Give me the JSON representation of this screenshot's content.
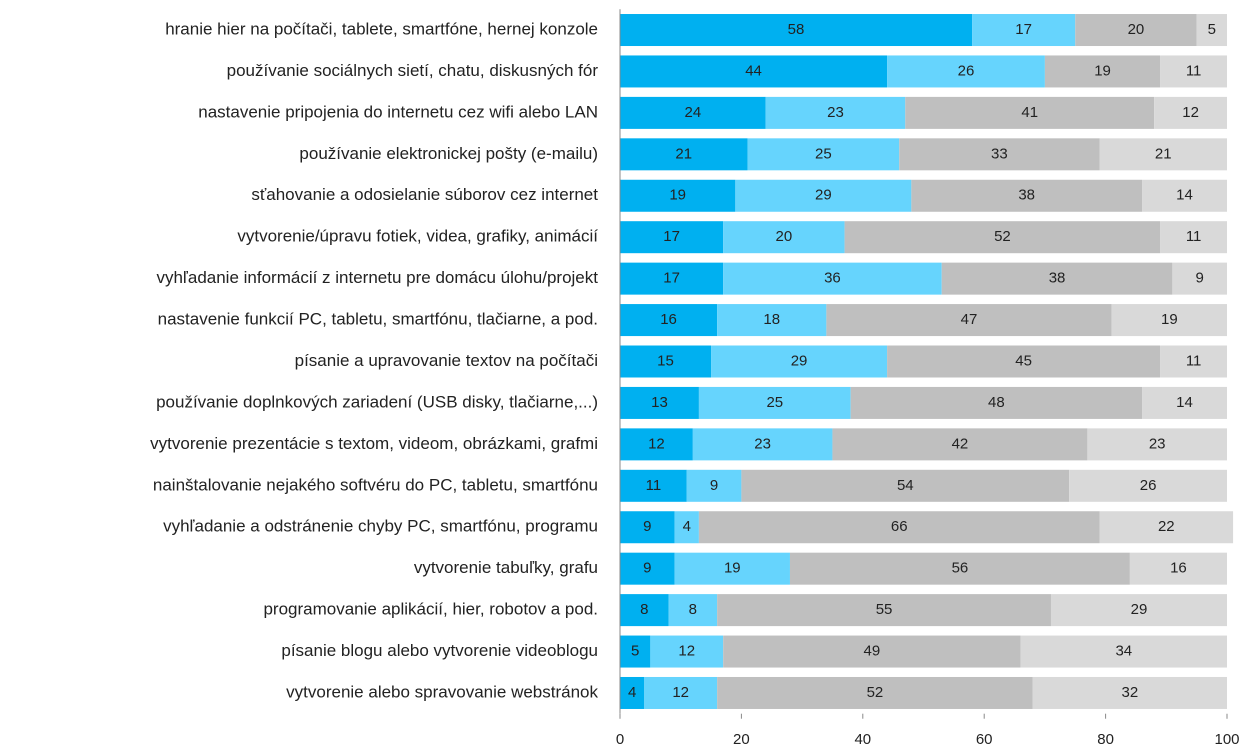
{
  "chart_data": {
    "type": "stacked_barh",
    "categories": [
      "hranie hier na počítači, tablete, smartfóne, hernej konzole",
      "používanie sociálnych sietí, chatu, diskusných fór",
      "nastavenie pripojenia do internetu cez wifi alebo LAN",
      "používanie elektronickej pošty (e-mailu)",
      "sťahovanie a odosielanie súborov cez internet",
      "vytvorenie/úpravu fotiek, videa, grafiky, animácií",
      "vyhľadanie informácií z internetu pre domácu úlohu/projekt",
      "nastavenie funkcií PC, tabletu, smartfónu, tlačiarne, a pod.",
      "písanie a upravovanie textov na počítači",
      "používanie doplnkových zariadení (USB disky,  tlačiarne,...)",
      "vytvorenie prezentácie s textom, videom, obrázkami, grafmi",
      "nainštalovanie nejakého softvéru do PC, tabletu, smartfónu",
      "vyhľadanie a odstránenie chyby PC, smartfónu, programu",
      "vytvorenie tabuľky, grafu",
      "programovanie aplikácií, hier, robotov a pod.",
      "písanie blogu alebo vytvorenie videoblogu",
      "vytvorenie alebo spravovanie webstránok"
    ],
    "series": [
      {
        "color": "#00b0f0",
        "values": [
          58,
          44,
          24,
          21,
          19,
          17,
          17,
          16,
          15,
          13,
          12,
          11,
          9,
          9,
          8,
          5,
          4
        ]
      },
      {
        "color": "#66d4fd",
        "values": [
          17,
          26,
          23,
          25,
          29,
          20,
          36,
          18,
          29,
          25,
          23,
          9,
          4,
          19,
          8,
          12,
          12
        ]
      },
      {
        "color": "#bfbfbf",
        "values": [
          20,
          19,
          41,
          33,
          38,
          52,
          38,
          47,
          45,
          48,
          42,
          54,
          66,
          56,
          55,
          49,
          52
        ]
      },
      {
        "color": "#d9d9d9",
        "values": [
          5,
          11,
          12,
          21,
          14,
          11,
          9,
          19,
          11,
          14,
          23,
          26,
          22,
          16,
          29,
          34,
          32
        ]
      }
    ],
    "xlim": [
      0,
      100
    ],
    "xticks": [
      0,
      20,
      40,
      60,
      80,
      100
    ]
  }
}
